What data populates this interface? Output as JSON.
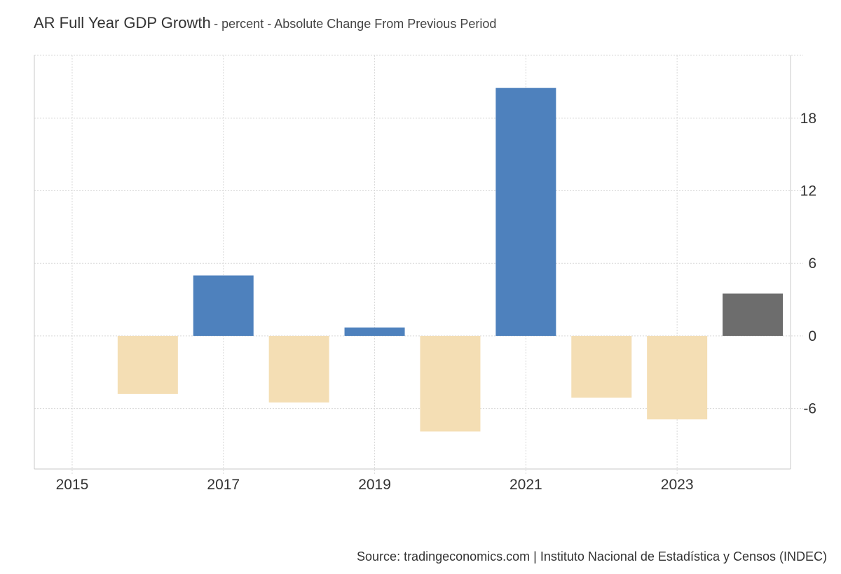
{
  "title": "AR Full Year GDP Growth",
  "subtitle": "- percent - Absolute Change From Previous Period",
  "source": "Source: tradingeconomics.com | Instituto Nacional de Estadística y Censos (INDEC)",
  "colors": {
    "positive": "#4e81bd",
    "negative": "#f4deb4",
    "forecast": "#6d6d6d",
    "grid": "#d8d8d8",
    "axis": "#c8c8c8"
  },
  "chart_data": {
    "type": "bar",
    "x": [
      2016,
      2017,
      2018,
      2019,
      2020,
      2021,
      2022,
      2023,
      2024
    ],
    "values": [
      -4.8,
      5.0,
      -5.5,
      0.7,
      -7.9,
      20.5,
      -5.1,
      -6.9,
      3.5
    ],
    "kinds": [
      "negative",
      "positive",
      "negative",
      "positive",
      "negative",
      "positive",
      "negative",
      "negative",
      "forecast"
    ],
    "x_ticks": [
      "2015",
      "2017",
      "2019",
      "2021",
      "2023"
    ],
    "x_tick_values": [
      2015,
      2017,
      2019,
      2021,
      2023
    ],
    "y_ticks": [
      "-6",
      "0",
      "6",
      "12",
      "18"
    ],
    "y_tick_values": [
      -6,
      0,
      6,
      12,
      18
    ],
    "ylim": [
      -11,
      23.2
    ],
    "xlim": [
      2014.5,
      2024.5
    ],
    "y_axis_side": "right",
    "grid": true
  }
}
